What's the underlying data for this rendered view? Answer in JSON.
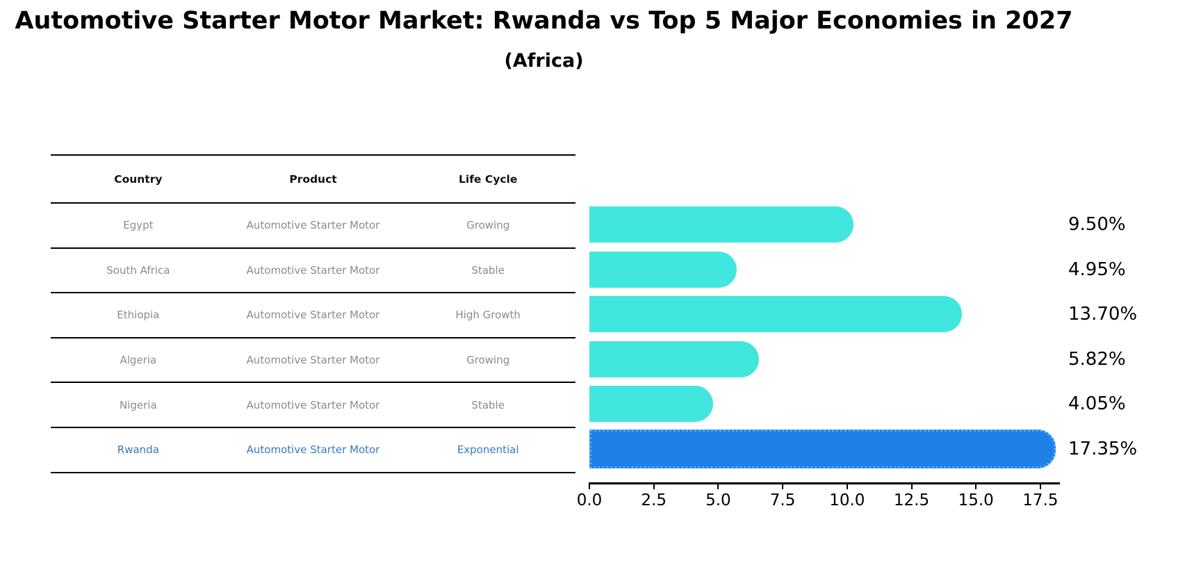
{
  "title": "Automotive Starter Motor Market: Rwanda vs Top 5 Major Economies in 2027",
  "subtitle": "(Africa)",
  "table": {
    "headers": [
      "Country",
      "Product",
      "Life Cycle"
    ],
    "rows": [
      {
        "country": "Egypt",
        "product": "Automotive Starter Motor",
        "life_cycle": "Growing",
        "highlight": false
      },
      {
        "country": "South Africa",
        "product": "Automotive Starter Motor",
        "life_cycle": "Stable",
        "highlight": false
      },
      {
        "country": "Ethiopia",
        "product": "Automotive Starter Motor",
        "life_cycle": "High Growth",
        "highlight": false
      },
      {
        "country": "Algeria",
        "product": "Automotive Starter Motor",
        "life_cycle": "Growing",
        "highlight": false
      },
      {
        "country": "Nigeria",
        "product": "Automotive Starter Motor",
        "life_cycle": "Stable",
        "highlight": false
      },
      {
        "country": "Rwanda",
        "product": "Automotive Starter Motor",
        "life_cycle": "Exponential",
        "highlight": true
      }
    ]
  },
  "chart_data": {
    "type": "bar",
    "orientation": "horizontal",
    "categories": [
      "Egypt",
      "South Africa",
      "Ethiopia",
      "Algeria",
      "Nigeria",
      "Rwanda"
    ],
    "values": [
      9.5,
      4.95,
      13.7,
      5.82,
      4.05,
      17.35
    ],
    "value_labels": [
      "9.50%",
      "4.95%",
      "13.70%",
      "5.82%",
      "4.05%",
      "17.35%"
    ],
    "highlight_index": 5,
    "title": "Automotive Starter Motor Market: Rwanda vs Top 5 Major Economies in 2027 (Africa)",
    "xlabel": "",
    "ylabel": "",
    "xlim": [
      0,
      18.3
    ],
    "x_ticks": [
      0.0,
      2.5,
      5.0,
      7.5,
      10.0,
      12.5,
      15.0,
      17.5
    ],
    "x_tick_labels": [
      "0.0",
      "2.5",
      "5.0",
      "7.5",
      "10.0",
      "12.5",
      "15.0",
      "17.5"
    ],
    "grid": false,
    "legend": false,
    "colors": {
      "bar_default": "#41e7df",
      "bar_highlight": "#1f81e8",
      "bar_highlight_border": "#54a8f4",
      "text_default_row": "#8b8b8b",
      "text_highlight_row": "#3579c8"
    }
  }
}
